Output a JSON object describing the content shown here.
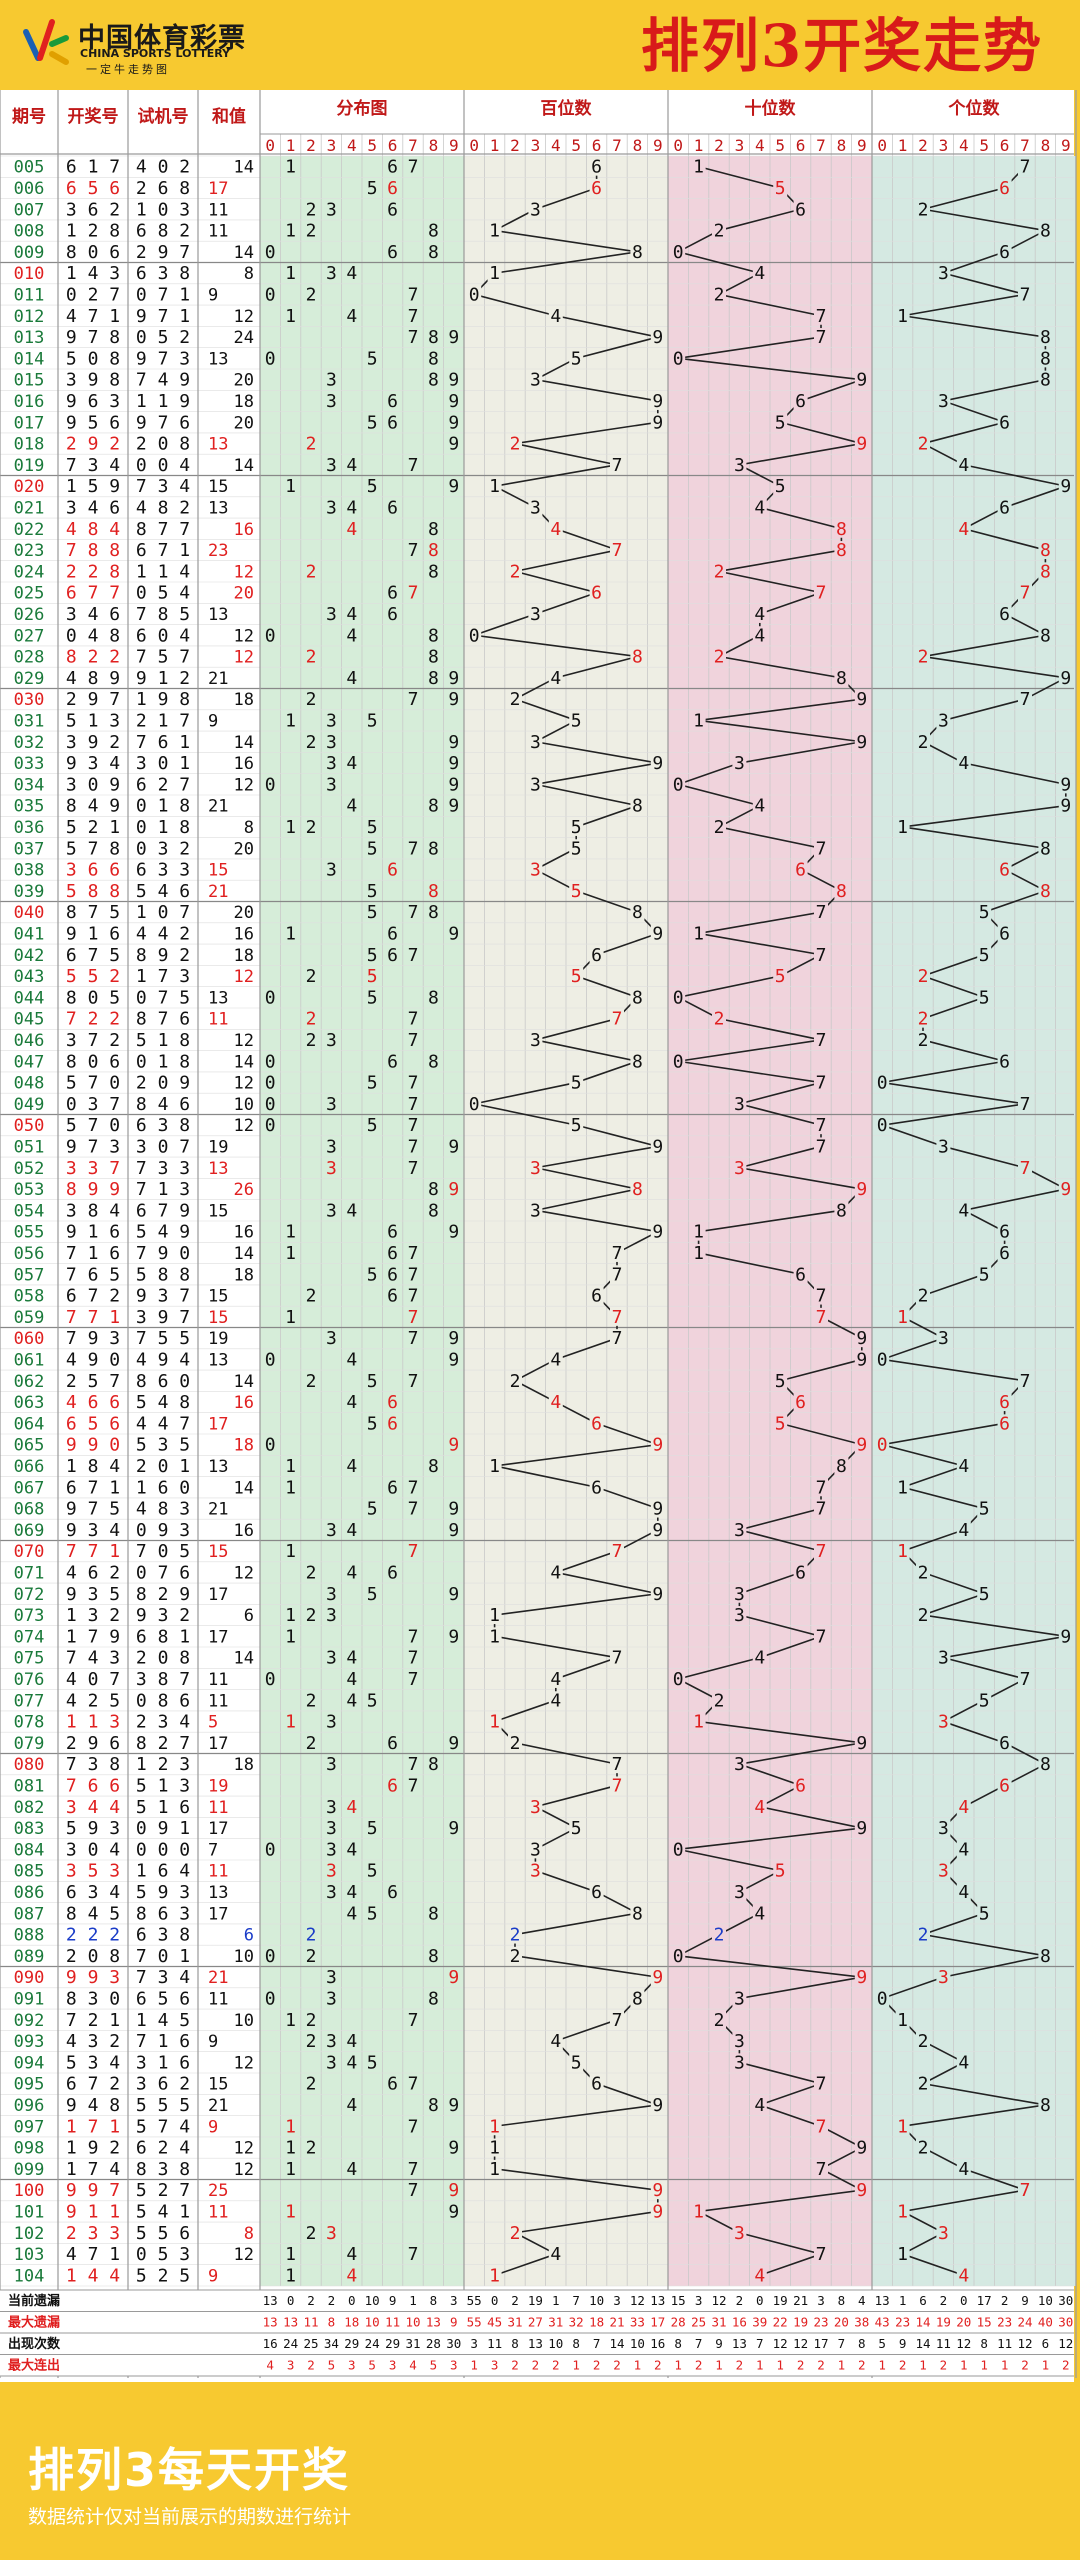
{
  "header": {
    "logo_cn": "中国体育彩票",
    "logo_en": "CHINA SPORTS LOTTERY",
    "logo_slogan": "一定牛走势图",
    "title": "排列3开奖走势"
  },
  "footer": {
    "title": "排列3每天开奖",
    "note": "数据统计仅对当前展示的期数进行统计"
  },
  "colors": {
    "background": "#f7c930",
    "title_red": "#d81a1a",
    "highlight_red": "#e02020",
    "highlight_blue": "#1a3cc8",
    "period_green": "#1a7a3a",
    "dist_bg": "#d6edd9",
    "hundreds_bg": "#eeeee4",
    "tens_bg": "#f0d3dc",
    "ones_bg": "#d5e9e2",
    "line": "#222222"
  },
  "chart_data": {
    "type": "table",
    "title": "排列3开奖走势",
    "columns": {
      "period": "期号",
      "draw": "开奖号",
      "test": "试机号",
      "sum": "和值",
      "distribution": "分布图",
      "hundreds": "百位数",
      "tens": "十位数",
      "ones": "个位数"
    },
    "digits": [
      "0",
      "1",
      "2",
      "3",
      "4",
      "5",
      "6",
      "7",
      "8",
      "9"
    ],
    "rows": [
      {
        "p": "005",
        "d": "617",
        "t": "402",
        "s": 14
      },
      {
        "p": "006",
        "d": "656",
        "t": "268",
        "s": 17
      },
      {
        "p": "007",
        "d": "362",
        "t": "103",
        "s": 11
      },
      {
        "p": "008",
        "d": "128",
        "t": "682",
        "s": 11
      },
      {
        "p": "009",
        "d": "806",
        "t": "297",
        "s": 14
      },
      {
        "p": "010",
        "d": "143",
        "t": "638",
        "s": 8
      },
      {
        "p": "011",
        "d": "027",
        "t": "071",
        "s": 9
      },
      {
        "p": "012",
        "d": "471",
        "t": "971",
        "s": 12
      },
      {
        "p": "013",
        "d": "978",
        "t": "052",
        "s": 24
      },
      {
        "p": "014",
        "d": "508",
        "t": "973",
        "s": 13
      },
      {
        "p": "015",
        "d": "398",
        "t": "749",
        "s": 20
      },
      {
        "p": "016",
        "d": "963",
        "t": "119",
        "s": 18
      },
      {
        "p": "017",
        "d": "956",
        "t": "976",
        "s": 20
      },
      {
        "p": "018",
        "d": "292",
        "t": "208",
        "s": 13
      },
      {
        "p": "019",
        "d": "734",
        "t": "004",
        "s": 14
      },
      {
        "p": "020",
        "d": "159",
        "t": "734",
        "s": 15
      },
      {
        "p": "021",
        "d": "346",
        "t": "482",
        "s": 13
      },
      {
        "p": "022",
        "d": "484",
        "t": "877",
        "s": 16
      },
      {
        "p": "023",
        "d": "788",
        "t": "671",
        "s": 23
      },
      {
        "p": "024",
        "d": "228",
        "t": "114",
        "s": 12
      },
      {
        "p": "025",
        "d": "677",
        "t": "054",
        "s": 20
      },
      {
        "p": "026",
        "d": "346",
        "t": "785",
        "s": 13
      },
      {
        "p": "027",
        "d": "048",
        "t": "604",
        "s": 12
      },
      {
        "p": "028",
        "d": "822",
        "t": "757",
        "s": 12
      },
      {
        "p": "029",
        "d": "489",
        "t": "912",
        "s": 21
      },
      {
        "p": "030",
        "d": "297",
        "t": "198",
        "s": 18
      },
      {
        "p": "031",
        "d": "513",
        "t": "217",
        "s": 9
      },
      {
        "p": "032",
        "d": "392",
        "t": "761",
        "s": 14
      },
      {
        "p": "033",
        "d": "934",
        "t": "301",
        "s": 16
      },
      {
        "p": "034",
        "d": "309",
        "t": "627",
        "s": 12
      },
      {
        "p": "035",
        "d": "849",
        "t": "018",
        "s": 21
      },
      {
        "p": "036",
        "d": "521",
        "t": "018",
        "s": 8
      },
      {
        "p": "037",
        "d": "578",
        "t": "032",
        "s": 20
      },
      {
        "p": "038",
        "d": "366",
        "t": "633",
        "s": 15
      },
      {
        "p": "039",
        "d": "588",
        "t": "546",
        "s": 21
      },
      {
        "p": "040",
        "d": "875",
        "t": "107",
        "s": 20
      },
      {
        "p": "041",
        "d": "916",
        "t": "442",
        "s": 16
      },
      {
        "p": "042",
        "d": "675",
        "t": "892",
        "s": 18
      },
      {
        "p": "043",
        "d": "552",
        "t": "173",
        "s": 12
      },
      {
        "p": "044",
        "d": "805",
        "t": "075",
        "s": 13
      },
      {
        "p": "045",
        "d": "722",
        "t": "876",
        "s": 11
      },
      {
        "p": "046",
        "d": "372",
        "t": "518",
        "s": 12
      },
      {
        "p": "047",
        "d": "806",
        "t": "018",
        "s": 14
      },
      {
        "p": "048",
        "d": "570",
        "t": "209",
        "s": 12
      },
      {
        "p": "049",
        "d": "037",
        "t": "846",
        "s": 10
      },
      {
        "p": "050",
        "d": "570",
        "t": "638",
        "s": 12
      },
      {
        "p": "051",
        "d": "973",
        "t": "307",
        "s": 19
      },
      {
        "p": "052",
        "d": "337",
        "t": "733",
        "s": 13
      },
      {
        "p": "053",
        "d": "899",
        "t": "713",
        "s": 26
      },
      {
        "p": "054",
        "d": "384",
        "t": "679",
        "s": 15
      },
      {
        "p": "055",
        "d": "916",
        "t": "549",
        "s": 16
      },
      {
        "p": "056",
        "d": "716",
        "t": "790",
        "s": 14
      },
      {
        "p": "057",
        "d": "765",
        "t": "588",
        "s": 18
      },
      {
        "p": "058",
        "d": "672",
        "t": "937",
        "s": 15
      },
      {
        "p": "059",
        "d": "771",
        "t": "397",
        "s": 15
      },
      {
        "p": "060",
        "d": "793",
        "t": "755",
        "s": 19
      },
      {
        "p": "061",
        "d": "490",
        "t": "494",
        "s": 13
      },
      {
        "p": "062",
        "d": "257",
        "t": "860",
        "s": 14
      },
      {
        "p": "063",
        "d": "466",
        "t": "548",
        "s": 16
      },
      {
        "p": "064",
        "d": "656",
        "t": "447",
        "s": 17
      },
      {
        "p": "065",
        "d": "990",
        "t": "535",
        "s": 18
      },
      {
        "p": "066",
        "d": "184",
        "t": "201",
        "s": 13
      },
      {
        "p": "067",
        "d": "671",
        "t": "160",
        "s": 14
      },
      {
        "p": "068",
        "d": "975",
        "t": "483",
        "s": 21
      },
      {
        "p": "069",
        "d": "934",
        "t": "093",
        "s": 16
      },
      {
        "p": "070",
        "d": "771",
        "t": "705",
        "s": 15
      },
      {
        "p": "071",
        "d": "462",
        "t": "076",
        "s": 12
      },
      {
        "p": "072",
        "d": "935",
        "t": "829",
        "s": 17
      },
      {
        "p": "073",
        "d": "132",
        "t": "932",
        "s": 6
      },
      {
        "p": "074",
        "d": "179",
        "t": "681",
        "s": 17
      },
      {
        "p": "075",
        "d": "743",
        "t": "208",
        "s": 14
      },
      {
        "p": "076",
        "d": "407",
        "t": "387",
        "s": 11
      },
      {
        "p": "077",
        "d": "425",
        "t": "086",
        "s": 11
      },
      {
        "p": "078",
        "d": "113",
        "t": "234",
        "s": 5
      },
      {
        "p": "079",
        "d": "296",
        "t": "827",
        "s": 17
      },
      {
        "p": "080",
        "d": "738",
        "t": "123",
        "s": 18
      },
      {
        "p": "081",
        "d": "766",
        "t": "513",
        "s": 19
      },
      {
        "p": "082",
        "d": "344",
        "t": "516",
        "s": 11
      },
      {
        "p": "083",
        "d": "593",
        "t": "091",
        "s": 17
      },
      {
        "p": "084",
        "d": "304",
        "t": "000",
        "s": 7
      },
      {
        "p": "085",
        "d": "353",
        "t": "164",
        "s": 11
      },
      {
        "p": "086",
        "d": "634",
        "t": "593",
        "s": 13
      },
      {
        "p": "087",
        "d": "845",
        "t": "863",
        "s": 17
      },
      {
        "p": "088",
        "d": "222",
        "t": "638",
        "s": 6
      },
      {
        "p": "089",
        "d": "208",
        "t": "701",
        "s": 10
      },
      {
        "p": "090",
        "d": "993",
        "t": "734",
        "s": 21
      },
      {
        "p": "091",
        "d": "830",
        "t": "656",
        "s": 11
      },
      {
        "p": "092",
        "d": "721",
        "t": "145",
        "s": 10
      },
      {
        "p": "093",
        "d": "432",
        "t": "716",
        "s": 9
      },
      {
        "p": "094",
        "d": "534",
        "t": "316",
        "s": 12
      },
      {
        "p": "095",
        "d": "672",
        "t": "362",
        "s": 15
      },
      {
        "p": "096",
        "d": "948",
        "t": "555",
        "s": 21
      },
      {
        "p": "097",
        "d": "171",
        "t": "574",
        "s": 9
      },
      {
        "p": "098",
        "d": "192",
        "t": "624",
        "s": 12
      },
      {
        "p": "099",
        "d": "174",
        "t": "838",
        "s": 12
      },
      {
        "p": "100",
        "d": "997",
        "t": "527",
        "s": 25
      },
      {
        "p": "101",
        "d": "911",
        "t": "541",
        "s": 11
      },
      {
        "p": "102",
        "d": "233",
        "t": "556",
        "s": 8
      },
      {
        "p": "103",
        "d": "471",
        "t": "053",
        "s": 12
      },
      {
        "p": "104",
        "d": "144",
        "t": "525",
        "s": 9
      }
    ],
    "stats": [
      {
        "label": "当前遗漏",
        "class": "black",
        "dist": [
          13,
          0,
          2,
          2,
          0,
          10,
          9,
          1,
          8,
          3
        ],
        "hundreds": [
          55,
          0,
          2,
          19,
          1,
          7,
          10,
          3,
          12,
          13
        ],
        "tens": [
          15,
          3,
          12,
          2,
          0,
          19,
          21,
          3,
          8,
          4
        ],
        "ones": [
          13,
          1,
          6,
          2,
          0,
          17,
          2,
          9,
          10,
          30
        ]
      },
      {
        "label": "最大遗漏",
        "class": "red",
        "dist": [
          13,
          13,
          11,
          8,
          18,
          10,
          11,
          10,
          13,
          9
        ],
        "hundreds": [
          55,
          45,
          31,
          27,
          31,
          32,
          18,
          21,
          33,
          17
        ],
        "tens": [
          28,
          25,
          31,
          16,
          39,
          22,
          19,
          23,
          20,
          38
        ],
        "ones": [
          43,
          23,
          14,
          19,
          20,
          15,
          23,
          24,
          40,
          30
        ]
      },
      {
        "label": "出现次数",
        "class": "black",
        "dist": [
          16,
          24,
          25,
          34,
          29,
          24,
          29,
          31,
          28,
          30
        ],
        "hundreds": [
          3,
          11,
          8,
          13,
          10,
          8,
          7,
          14,
          10,
          16
        ],
        "tens": [
          8,
          7,
          9,
          13,
          7,
          12,
          12,
          17,
          7,
          8
        ],
        "ones": [
          5,
          9,
          14,
          11,
          12,
          8,
          11,
          12,
          6,
          12
        ]
      },
      {
        "label": "最大连出",
        "class": "red",
        "dist": [
          4,
          3,
          2,
          5,
          3,
          5,
          3,
          4,
          5,
          3
        ],
        "hundreds": [
          1,
          3,
          2,
          2,
          2,
          1,
          2,
          2,
          1,
          2
        ],
        "tens": [
          1,
          2,
          1,
          2,
          1,
          1,
          2,
          2,
          1,
          2
        ],
        "ones": [
          1,
          2,
          1,
          2,
          1,
          1,
          1,
          2,
          1,
          2
        ]
      }
    ]
  }
}
